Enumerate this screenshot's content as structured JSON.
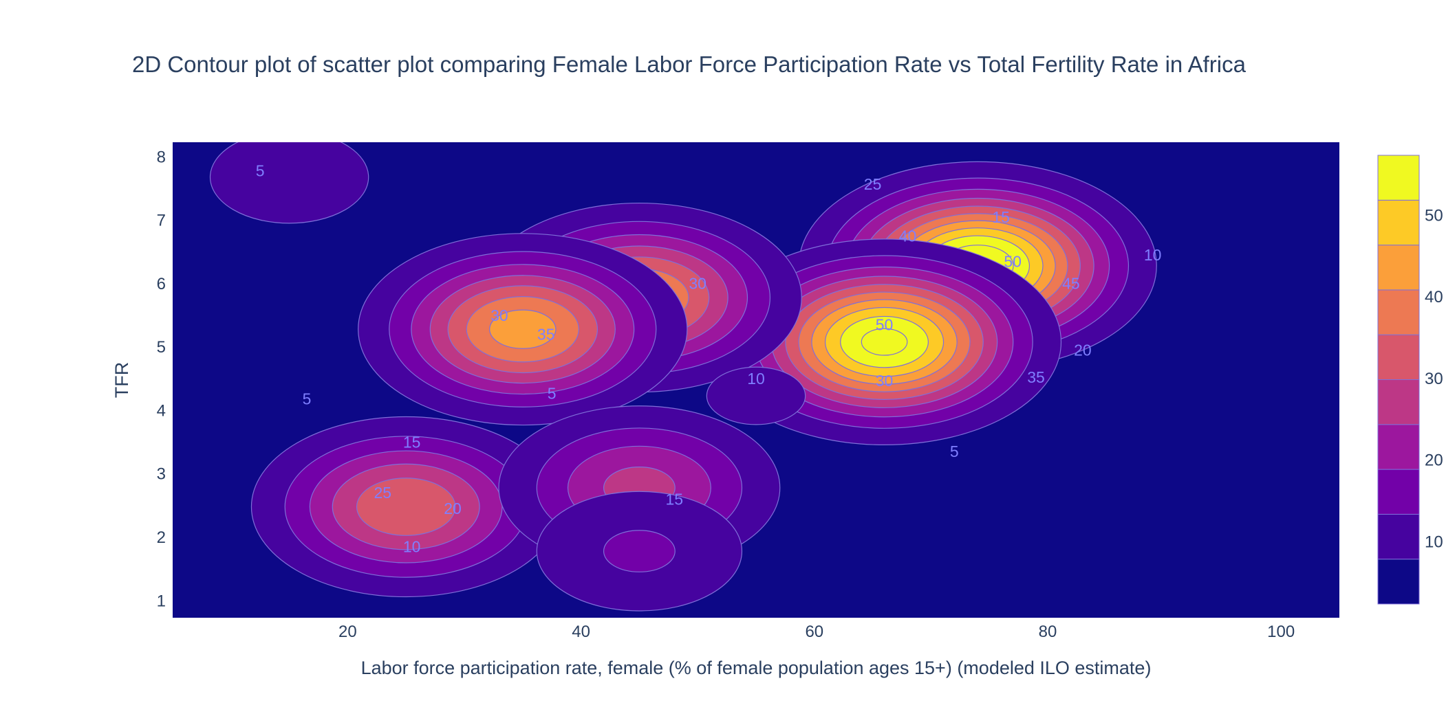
{
  "chart_data": {
    "type": "contour",
    "title": "2D Contour plot of scatter plot comparing Female Labor Force Participation Rate vs Total Fertility Rate in Africa",
    "xlabel": "Labor force participation rate, female (% of female population ages 15+) (modeled ILO estimate)",
    "ylabel": "TFR",
    "xlim": [
      5,
      105
    ],
    "ylim": [
      0.75,
      8.25
    ],
    "x_ticks": [
      20,
      40,
      60,
      80,
      100
    ],
    "y_ticks": [
      1,
      2,
      3,
      4,
      5,
      6,
      7,
      8
    ],
    "contour_levels": [
      5,
      10,
      15,
      20,
      25,
      30,
      35,
      40,
      45,
      50,
      55
    ],
    "colorbar": {
      "ticks": [
        10,
        20,
        30,
        40,
        50
      ],
      "range": [
        2.5,
        57.5
      ],
      "colorscale": [
        "#0d0887",
        "#46039f",
        "#7201a8",
        "#9c179e",
        "#bd3786",
        "#d8576b",
        "#ed7953",
        "#fb9f3a",
        "#fdca26",
        "#f0f921"
      ]
    },
    "density_peaks": [
      {
        "x": 74,
        "y": 6.3,
        "value": 55
      },
      {
        "x": 66,
        "y": 5.1,
        "value": 52
      },
      {
        "x": 45,
        "y": 5.8,
        "value": 36
      },
      {
        "x": 35,
        "y": 5.3,
        "value": 38
      },
      {
        "x": 25,
        "y": 2.5,
        "value": 30
      },
      {
        "x": 45,
        "y": 2.8,
        "value": 22
      },
      {
        "x": 45,
        "y": 1.8,
        "value": 11
      },
      {
        "x": 15,
        "y": 7.7,
        "value": 8
      },
      {
        "x": 55,
        "y": 4.25,
        "value": 6
      }
    ],
    "contour_labels": [
      {
        "text": "5",
        "x": 12.5,
        "y": 7.78
      },
      {
        "text": "5",
        "x": 16.5,
        "y": 4.18
      },
      {
        "text": "5",
        "x": 37.5,
        "y": 4.27
      },
      {
        "text": "5",
        "x": 72,
        "y": 3.35
      },
      {
        "text": "10",
        "x": 55,
        "y": 4.5
      },
      {
        "text": "10",
        "x": 25.5,
        "y": 1.85
      },
      {
        "text": "10",
        "x": 89,
        "y": 6.45
      },
      {
        "text": "15",
        "x": 25.5,
        "y": 3.5
      },
      {
        "text": "15",
        "x": 48,
        "y": 2.6
      },
      {
        "text": "15",
        "x": 76,
        "y": 7.05
      },
      {
        "text": "20",
        "x": 29,
        "y": 2.45
      },
      {
        "text": "20",
        "x": 83,
        "y": 4.95
      },
      {
        "text": "25",
        "x": 23,
        "y": 2.7
      },
      {
        "text": "25",
        "x": 65,
        "y": 7.57
      },
      {
        "text": "30",
        "x": 33,
        "y": 5.5
      },
      {
        "text": "30",
        "x": 50,
        "y": 6.0
      },
      {
        "text": "30",
        "x": 66,
        "y": 4.47
      },
      {
        "text": "35",
        "x": 37,
        "y": 5.2
      },
      {
        "text": "35",
        "x": 79,
        "y": 4.52
      },
      {
        "text": "40",
        "x": 68,
        "y": 6.75
      },
      {
        "text": "45",
        "x": 82,
        "y": 6.0
      },
      {
        "text": "50",
        "x": 66,
        "y": 5.35
      },
      {
        "text": "50",
        "x": 77,
        "y": 6.35
      }
    ]
  }
}
